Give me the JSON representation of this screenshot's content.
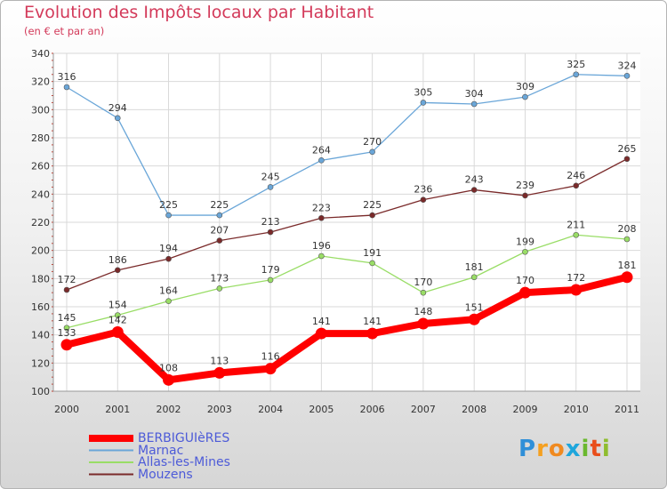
{
  "header": {
    "title": "Evolution des Impôts locaux par Habitant",
    "subtitle": "(en € et par an)"
  },
  "logo": {
    "text": "Proxiti"
  },
  "chart_data": {
    "type": "line",
    "x": [
      "2000",
      "2001",
      "2002",
      "2003",
      "2004",
      "2005",
      "2006",
      "2007",
      "2008",
      "2009",
      "2010",
      "2011"
    ],
    "ylim": [
      100,
      340
    ],
    "yticks": [
      100,
      120,
      140,
      160,
      180,
      200,
      220,
      240,
      260,
      280,
      300,
      320,
      340
    ],
    "grid": true,
    "legend_position": "bottom-left",
    "series": [
      {
        "name": "BERBIGUIèRES",
        "color": "#ff0000",
        "values": [
          133,
          142,
          108,
          113,
          116,
          141,
          141,
          148,
          151,
          170,
          172,
          181
        ]
      },
      {
        "name": "Marnac",
        "color": "#6aa6d8",
        "values": [
          316,
          294,
          225,
          225,
          245,
          264,
          270,
          305,
          304,
          309,
          325,
          324
        ]
      },
      {
        "name": "Allas-les-Mines",
        "color": "#99dd66",
        "values": [
          145,
          154,
          164,
          173,
          179,
          196,
          191,
          170,
          181,
          199,
          211,
          208
        ]
      },
      {
        "name": "Mouzens",
        "color": "#7a2a2a",
        "values": [
          172,
          186,
          194,
          207,
          213,
          223,
          225,
          236,
          243,
          239,
          246,
          265
        ]
      }
    ]
  }
}
